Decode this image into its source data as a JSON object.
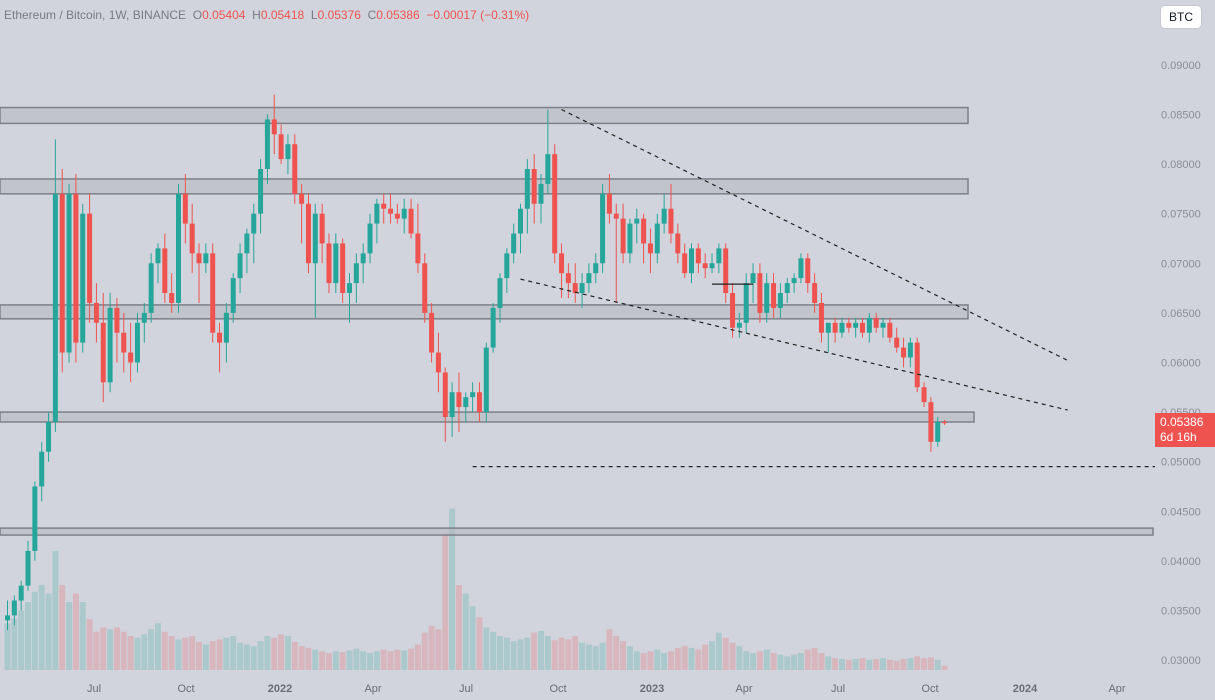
{
  "legend": {
    "symbol": "Ethereum / Bitcoin, 1W, BINANCE",
    "o_label": "O",
    "o": "0.05404",
    "h_label": "H",
    "h": "0.05418",
    "l_label": "L",
    "l": "0.05376",
    "c_label": "C",
    "c": "0.05386",
    "change": "−0.00017 (−0.31%)"
  },
  "currency_button": "BTC",
  "price_tag": {
    "price": "0.05386",
    "countdown": "6d 16h"
  },
  "colors": {
    "background": "#d1d4dc",
    "up": "#26a69a",
    "down": "#ef5350",
    "zone_fill": "#b4b7be",
    "zone_border": "#7d8088"
  },
  "chart_data": {
    "type": "candlestick",
    "symbol": "ETH/BTC",
    "interval": "1W",
    "exchange": "BINANCE",
    "ylim": [
      0.0295,
      0.0915
    ],
    "y_ticks": [
      "0.09000",
      "0.08500",
      "0.08000",
      "0.07500",
      "0.07000",
      "0.06500",
      "0.06000",
      "0.05500",
      "0.05000",
      "0.04500",
      "0.04000",
      "0.03500",
      "0.03000"
    ],
    "x_ticks": [
      "Jul",
      "Oct",
      "2022",
      "Apr",
      "Jul",
      "Oct",
      "2023",
      "Apr",
      "Jul",
      "Oct",
      "2024",
      "Apr"
    ],
    "candles": [
      [
        0.034,
        0.036,
        0.033,
        0.0345
      ],
      [
        0.0345,
        0.0365,
        0.0335,
        0.036
      ],
      [
        0.036,
        0.038,
        0.035,
        0.0375
      ],
      [
        0.0375,
        0.042,
        0.037,
        0.041
      ],
      [
        0.041,
        0.048,
        0.04,
        0.0475
      ],
      [
        0.0475,
        0.052,
        0.046,
        0.051
      ],
      [
        0.051,
        0.055,
        0.05,
        0.054
      ],
      [
        0.054,
        0.0825,
        0.053,
        0.077
      ],
      [
        0.077,
        0.0795,
        0.059,
        0.061
      ],
      [
        0.061,
        0.078,
        0.06,
        0.077
      ],
      [
        0.077,
        0.079,
        0.06,
        0.062
      ],
      [
        0.062,
        0.076,
        0.061,
        0.075
      ],
      [
        0.075,
        0.077,
        0.064,
        0.066
      ],
      [
        0.066,
        0.068,
        0.062,
        0.064
      ],
      [
        0.064,
        0.067,
        0.056,
        0.058
      ],
      [
        0.058,
        0.067,
        0.057,
        0.0655
      ],
      [
        0.0655,
        0.0665,
        0.06,
        0.063
      ],
      [
        0.063,
        0.065,
        0.059,
        0.061
      ],
      [
        0.061,
        0.064,
        0.058,
        0.06
      ],
      [
        0.06,
        0.065,
        0.059,
        0.064
      ],
      [
        0.064,
        0.066,
        0.062,
        0.065
      ],
      [
        0.065,
        0.071,
        0.064,
        0.07
      ],
      [
        0.07,
        0.072,
        0.068,
        0.0715
      ],
      [
        0.0715,
        0.073,
        0.066,
        0.067
      ],
      [
        0.067,
        0.069,
        0.065,
        0.066
      ],
      [
        0.066,
        0.078,
        0.065,
        0.077
      ],
      [
        0.077,
        0.079,
        0.072,
        0.074
      ],
      [
        0.074,
        0.076,
        0.069,
        0.071
      ],
      [
        0.071,
        0.072,
        0.066,
        0.07
      ],
      [
        0.07,
        0.072,
        0.069,
        0.071
      ],
      [
        0.071,
        0.072,
        0.062,
        0.063
      ],
      [
        0.063,
        0.064,
        0.059,
        0.062
      ],
      [
        0.062,
        0.066,
        0.06,
        0.065
      ],
      [
        0.065,
        0.069,
        0.064,
        0.0685
      ],
      [
        0.0685,
        0.072,
        0.067,
        0.071
      ],
      [
        0.071,
        0.0735,
        0.069,
        0.073
      ],
      [
        0.073,
        0.076,
        0.07,
        0.075
      ],
      [
        0.075,
        0.0805,
        0.073,
        0.0795
      ],
      [
        0.0795,
        0.085,
        0.078,
        0.0845
      ],
      [
        0.0845,
        0.087,
        0.081,
        0.083
      ],
      [
        0.083,
        0.084,
        0.08,
        0.0805
      ],
      [
        0.0805,
        0.083,
        0.079,
        0.082
      ],
      [
        0.082,
        0.083,
        0.076,
        0.077
      ],
      [
        0.077,
        0.078,
        0.072,
        0.076
      ],
      [
        0.076,
        0.077,
        0.069,
        0.07
      ],
      [
        0.07,
        0.076,
        0.0645,
        0.075
      ],
      [
        0.075,
        0.076,
        0.07,
        0.072
      ],
      [
        0.072,
        0.073,
        0.067,
        0.068
      ],
      [
        0.068,
        0.073,
        0.067,
        0.072
      ],
      [
        0.072,
        0.0725,
        0.066,
        0.067
      ],
      [
        0.067,
        0.069,
        0.064,
        0.068
      ],
      [
        0.068,
        0.071,
        0.066,
        0.07
      ],
      [
        0.07,
        0.072,
        0.068,
        0.071
      ],
      [
        0.071,
        0.075,
        0.07,
        0.074
      ],
      [
        0.074,
        0.0765,
        0.072,
        0.076
      ],
      [
        0.076,
        0.077,
        0.074,
        0.0755
      ],
      [
        0.0755,
        0.077,
        0.074,
        0.075
      ],
      [
        0.075,
        0.076,
        0.074,
        0.0745
      ],
      [
        0.0745,
        0.0765,
        0.073,
        0.0755
      ],
      [
        0.0755,
        0.0765,
        0.0725,
        0.073
      ],
      [
        0.073,
        0.076,
        0.069,
        0.07
      ],
      [
        0.07,
        0.071,
        0.064,
        0.065
      ],
      [
        0.065,
        0.066,
        0.06,
        0.061
      ],
      [
        0.061,
        0.063,
        0.057,
        0.059
      ],
      [
        0.059,
        0.0595,
        0.052,
        0.0545
      ],
      [
        0.0545,
        0.058,
        0.0525,
        0.057
      ],
      [
        0.057,
        0.059,
        0.053,
        0.0555
      ],
      [
        0.0555,
        0.057,
        0.054,
        0.0565
      ],
      [
        0.0565,
        0.058,
        0.055,
        0.057
      ],
      [
        0.057,
        0.058,
        0.054,
        0.055
      ],
      [
        0.055,
        0.062,
        0.054,
        0.0615
      ],
      [
        0.0615,
        0.066,
        0.061,
        0.0655
      ],
      [
        0.0655,
        0.069,
        0.064,
        0.0685
      ],
      [
        0.0685,
        0.0715,
        0.067,
        0.071
      ],
      [
        0.071,
        0.074,
        0.07,
        0.073
      ],
      [
        0.073,
        0.076,
        0.071,
        0.0755
      ],
      [
        0.0755,
        0.0805,
        0.073,
        0.0795
      ],
      [
        0.0795,
        0.081,
        0.074,
        0.076
      ],
      [
        0.076,
        0.079,
        0.074,
        0.078
      ],
      [
        0.078,
        0.0855,
        0.077,
        0.081
      ],
      [
        0.081,
        0.082,
        0.07,
        0.071
      ],
      [
        0.071,
        0.072,
        0.0665,
        0.069
      ],
      [
        0.069,
        0.07,
        0.0665,
        0.068
      ],
      [
        0.068,
        0.07,
        0.066,
        0.067
      ],
      [
        0.067,
        0.069,
        0.0655,
        0.068
      ],
      [
        0.068,
        0.07,
        0.067,
        0.069
      ],
      [
        0.069,
        0.071,
        0.068,
        0.07
      ],
      [
        0.07,
        0.078,
        0.069,
        0.077
      ],
      [
        0.077,
        0.079,
        0.074,
        0.075
      ],
      [
        0.075,
        0.076,
        0.066,
        0.0745
      ],
      [
        0.0745,
        0.076,
        0.07,
        0.071
      ],
      [
        0.071,
        0.0745,
        0.07,
        0.074
      ],
      [
        0.074,
        0.0755,
        0.072,
        0.0745
      ],
      [
        0.0745,
        0.075,
        0.07,
        0.072
      ],
      [
        0.072,
        0.0735,
        0.069,
        0.071
      ],
      [
        0.071,
        0.075,
        0.07,
        0.074
      ],
      [
        0.074,
        0.077,
        0.073,
        0.0755
      ],
      [
        0.0755,
        0.078,
        0.072,
        0.073
      ],
      [
        0.073,
        0.074,
        0.07,
        0.071
      ],
      [
        0.071,
        0.072,
        0.0685,
        0.069
      ],
      [
        0.069,
        0.072,
        0.068,
        0.0715
      ],
      [
        0.0715,
        0.072,
        0.069,
        0.07
      ],
      [
        0.07,
        0.071,
        0.0685,
        0.0695
      ],
      [
        0.0695,
        0.071,
        0.069,
        0.07
      ],
      [
        0.07,
        0.072,
        0.069,
        0.0715
      ],
      [
        0.0715,
        0.072,
        0.066,
        0.067
      ],
      [
        0.067,
        0.068,
        0.0625,
        0.0635
      ],
      [
        0.0635,
        0.065,
        0.0625,
        0.064
      ],
      [
        0.064,
        0.069,
        0.063,
        0.068
      ],
      [
        0.068,
        0.07,
        0.066,
        0.069
      ],
      [
        0.069,
        0.07,
        0.064,
        0.065
      ],
      [
        0.065,
        0.069,
        0.064,
        0.068
      ],
      [
        0.068,
        0.069,
        0.0645,
        0.0655
      ],
      [
        0.0655,
        0.068,
        0.0645,
        0.067
      ],
      [
        0.067,
        0.0685,
        0.066,
        0.068
      ],
      [
        0.068,
        0.069,
        0.067,
        0.0685
      ],
      [
        0.0685,
        0.071,
        0.068,
        0.0705
      ],
      [
        0.0705,
        0.071,
        0.067,
        0.068
      ],
      [
        0.068,
        0.069,
        0.065,
        0.066
      ],
      [
        0.066,
        0.067,
        0.062,
        0.063
      ],
      [
        0.063,
        0.064,
        0.061,
        0.064
      ],
      [
        0.064,
        0.0645,
        0.062,
        0.063
      ],
      [
        0.063,
        0.0645,
        0.0625,
        0.064
      ],
      [
        0.064,
        0.0645,
        0.063,
        0.0635
      ],
      [
        0.0635,
        0.0645,
        0.0625,
        0.064
      ],
      [
        0.064,
        0.0645,
        0.0625,
        0.063
      ],
      [
        0.063,
        0.065,
        0.062,
        0.0645
      ],
      [
        0.0645,
        0.065,
        0.063,
        0.0635
      ],
      [
        0.0635,
        0.0645,
        0.0625,
        0.064
      ],
      [
        0.064,
        0.0645,
        0.062,
        0.0625
      ],
      [
        0.0625,
        0.0635,
        0.061,
        0.0615
      ],
      [
        0.0615,
        0.0625,
        0.0595,
        0.0605
      ],
      [
        0.0605,
        0.0625,
        0.0595,
        0.062
      ],
      [
        0.062,
        0.0625,
        0.057,
        0.0575
      ],
      [
        0.0575,
        0.058,
        0.0555,
        0.056
      ],
      [
        0.056,
        0.0565,
        0.051,
        0.052
      ],
      [
        0.052,
        0.0545,
        0.0515,
        0.054
      ],
      [
        0.054,
        0.0542,
        0.0537,
        0.0539
      ]
    ],
    "volume": [
      0.55,
      0.6,
      0.7,
      0.8,
      0.92,
      1.0,
      0.9,
      1.4,
      1.0,
      0.8,
      0.9,
      0.8,
      0.6,
      0.45,
      0.5,
      0.48,
      0.5,
      0.45,
      0.4,
      0.38,
      0.42,
      0.48,
      0.55,
      0.45,
      0.4,
      0.36,
      0.38,
      0.4,
      0.33,
      0.3,
      0.34,
      0.36,
      0.38,
      0.4,
      0.32,
      0.3,
      0.28,
      0.34,
      0.4,
      0.38,
      0.42,
      0.4,
      0.33,
      0.28,
      0.26,
      0.24,
      0.22,
      0.2,
      0.22,
      0.21,
      0.23,
      0.25,
      0.22,
      0.2,
      0.22,
      0.24,
      0.22,
      0.24,
      0.23,
      0.25,
      0.3,
      0.44,
      0.52,
      0.48,
      1.6,
      1.9,
      1.0,
      0.9,
      0.75,
      0.62,
      0.5,
      0.45,
      0.4,
      0.38,
      0.34,
      0.36,
      0.38,
      0.44,
      0.46,
      0.4,
      0.35,
      0.38,
      0.36,
      0.4,
      0.32,
      0.3,
      0.28,
      0.32,
      0.48,
      0.4,
      0.34,
      0.28,
      0.22,
      0.2,
      0.22,
      0.24,
      0.2,
      0.22,
      0.26,
      0.28,
      0.26,
      0.24,
      0.3,
      0.34,
      0.44,
      0.38,
      0.32,
      0.28,
      0.22,
      0.2,
      0.22,
      0.24,
      0.2,
      0.18,
      0.16,
      0.18,
      0.2,
      0.24,
      0.26,
      0.2,
      0.16,
      0.14,
      0.13,
      0.12,
      0.13,
      0.14,
      0.12,
      0.13,
      0.14,
      0.12,
      0.11,
      0.13,
      0.14,
      0.16,
      0.14,
      0.15,
      0.12,
      0.05
    ],
    "zones": [
      [
        0.0841,
        0.0857
      ],
      [
        0.077,
        0.0785
      ],
      [
        0.0644,
        0.0658
      ],
      [
        0.054,
        0.055
      ],
      [
        0.0426,
        0.0433
      ]
    ],
    "trendlines": [
      {
        "from": [
          81,
          0.0855
        ],
        "to": [
          155,
          0.0602
        ],
        "style": "dashed"
      },
      {
        "from": [
          75,
          0.0684
        ],
        "to": [
          155,
          0.0552
        ],
        "style": "dashed"
      },
      {
        "from": [
          103,
          0.0679
        ],
        "to": [
          109,
          0.0679
        ],
        "style": "solid"
      },
      {
        "from": [
          68,
          0.0495
        ],
        "to": [
          168,
          0.0495
        ],
        "style": "dashed"
      }
    ]
  }
}
